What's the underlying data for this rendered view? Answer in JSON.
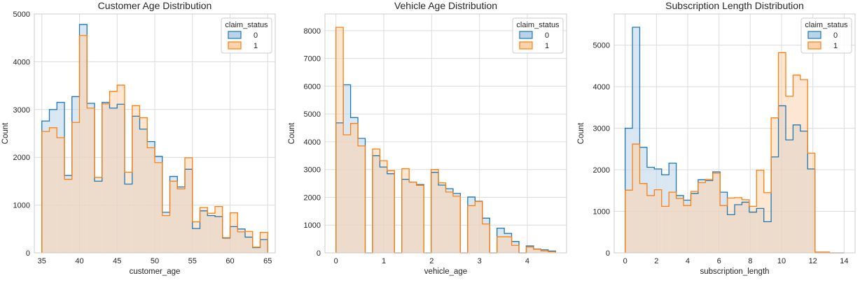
{
  "chart_data": [
    {
      "type": "histogram",
      "title": "Customer Age Distribution",
      "xlabel": "customer_age",
      "ylabel": "Count",
      "xlim": [
        34,
        66
      ],
      "ylim": [
        0,
        5000
      ],
      "xticks": [
        35,
        40,
        45,
        50,
        55,
        60,
        65
      ],
      "yticks": [
        0,
        1000,
        2000,
        3000,
        4000,
        5000
      ],
      "grid": true,
      "legend": {
        "title": "claim_status",
        "position": "top-right"
      },
      "bin_edges": [
        35,
        36,
        37,
        38,
        39,
        40,
        41,
        42,
        43,
        44,
        45,
        46,
        47,
        48,
        49,
        50,
        51,
        52,
        53,
        54,
        55,
        56,
        57,
        58,
        59,
        60,
        61,
        62,
        63,
        64,
        65
      ],
      "series": [
        {
          "name": "0",
          "color": "#1f77b4",
          "fill": "#b9d3e8",
          "values": [
            2760,
            3000,
            3150,
            1620,
            3270,
            4780,
            3130,
            1500,
            3150,
            3030,
            3110,
            1440,
            2860,
            2590,
            2330,
            2020,
            850,
            1600,
            1380,
            1750,
            510,
            880,
            780,
            760,
            310,
            550,
            500,
            330,
            110,
            280
          ]
        },
        {
          "name": "1",
          "color": "#ff7f0e",
          "fill": "#fdd3ad",
          "values": [
            2540,
            2620,
            2410,
            1540,
            2730,
            4550,
            3030,
            1580,
            3120,
            3380,
            3510,
            1690,
            3080,
            2830,
            2200,
            1890,
            780,
            1500,
            1340,
            1990,
            650,
            950,
            830,
            970,
            320,
            840,
            440,
            450,
            120,
            430
          ]
        }
      ]
    },
    {
      "type": "histogram",
      "title": "Vehicle Age Distribution",
      "xlabel": "vehicle_age",
      "ylabel": "Count",
      "xlim": [
        -0.23,
        4.82
      ],
      "ylim": [
        0,
        8600
      ],
      "xticks": [
        0,
        1,
        2,
        3,
        4
      ],
      "yticks": [
        0,
        1000,
        2000,
        3000,
        4000,
        5000,
        6000,
        7000,
        8000
      ],
      "grid": true,
      "legend": {
        "title": "claim_status",
        "position": "top-right"
      },
      "bin_edges": [
        0.0,
        0.153,
        0.306,
        0.459,
        0.612,
        0.765,
        0.918,
        1.071,
        1.224,
        1.377,
        1.53,
        1.683,
        1.836,
        1.989,
        2.142,
        2.295,
        2.448,
        2.601,
        2.754,
        2.907,
        3.06,
        3.213,
        3.366,
        3.519,
        3.672,
        3.825,
        3.978,
        4.131,
        4.284,
        4.437,
        4.59
      ],
      "series": [
        {
          "name": "0",
          "color": "#1f77b4",
          "fill": "#b9d3e8",
          "values": [
            4680,
            6050,
            4870,
            4120,
            0,
            3500,
            3090,
            2850,
            0,
            2650,
            2550,
            2460,
            0,
            2900,
            2440,
            2310,
            2140,
            0,
            2010,
            1860,
            1250,
            0,
            890,
            700,
            410,
            0,
            250,
            140,
            110,
            70
          ]
        },
        {
          "name": "1",
          "color": "#ff7f0e",
          "fill": "#fdd3ad",
          "values": [
            8120,
            4250,
            4660,
            3850,
            0,
            3740,
            3320,
            2960,
            0,
            3030,
            2550,
            2430,
            0,
            3000,
            2520,
            2190,
            2040,
            0,
            1700,
            1850,
            1040,
            0,
            580,
            580,
            270,
            0,
            210,
            130,
            70,
            40
          ]
        }
      ]
    },
    {
      "type": "histogram",
      "title": "Subscription Length Distribution",
      "xlabel": "subscription_length",
      "ylabel": "Count",
      "xlim": [
        -0.7,
        14.7
      ],
      "ylim": [
        0,
        5750
      ],
      "xticks": [
        0,
        2,
        4,
        6,
        8,
        10,
        12,
        14
      ],
      "yticks": [
        0,
        1000,
        2000,
        3000,
        4000,
        5000
      ],
      "grid": true,
      "legend": {
        "title": "claim_status",
        "position": "top-right"
      },
      "bin_edges": [
        0.0,
        0.467,
        0.933,
        1.4,
        1.867,
        2.333,
        2.8,
        3.267,
        3.733,
        4.2,
        4.667,
        5.133,
        5.6,
        6.067,
        6.533,
        7.0,
        7.467,
        7.933,
        8.4,
        8.867,
        9.333,
        9.8,
        10.267,
        10.733,
        11.2,
        11.667,
        12.133,
        12.6,
        13.067,
        13.533,
        14.0
      ],
      "series": [
        {
          "name": "0",
          "color": "#1f77b4",
          "fill": "#b9d3e8",
          "values": [
            3000,
            5430,
            2540,
            2060,
            2020,
            1880,
            2160,
            1380,
            1270,
            1430,
            1760,
            1740,
            1950,
            1460,
            920,
            1160,
            1220,
            980,
            1070,
            750,
            2310,
            3540,
            2720,
            3080,
            2930,
            2020,
            0,
            0,
            0,
            0
          ]
        },
        {
          "name": "1",
          "color": "#ff7f0e",
          "fill": "#fdd3ad",
          "values": [
            1510,
            2620,
            1670,
            1380,
            1520,
            1120,
            1460,
            1310,
            1140,
            1480,
            1690,
            1770,
            1920,
            1140,
            1320,
            1330,
            1280,
            1120,
            1990,
            1450,
            3250,
            4820,
            3770,
            4280,
            4170,
            2400,
            20,
            20,
            0,
            0
          ]
        }
      ]
    }
  ]
}
